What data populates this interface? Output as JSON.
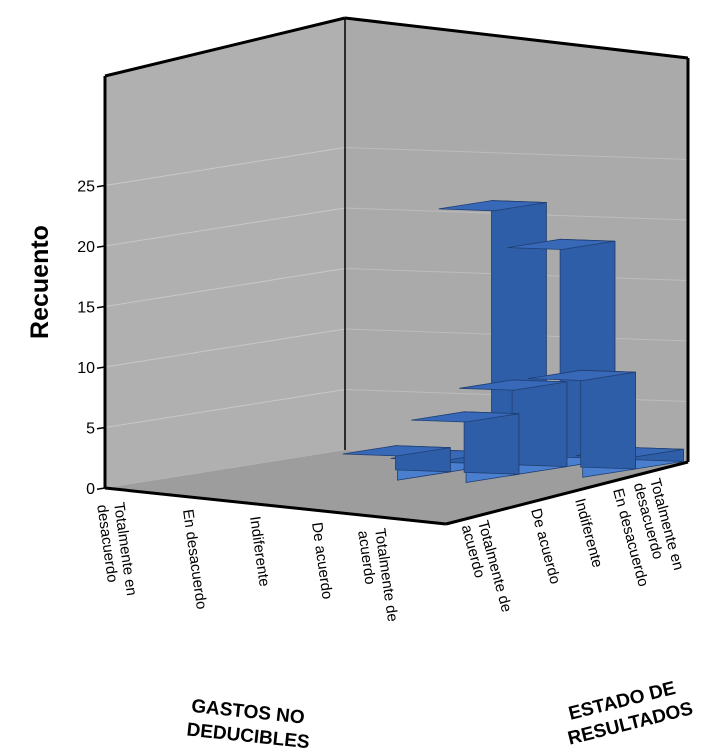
{
  "chart_data": {
    "type": "bar",
    "subtype": "3d-clustered",
    "title": "",
    "ylabel": "Recuento",
    "ylim": [
      0,
      27
    ],
    "yticks": [
      0,
      5,
      10,
      15,
      20,
      25
    ],
    "x_axis": {
      "label": "GASTOS NO DEDUCIBLES",
      "categories": [
        "Totalmente en desacuerdo",
        "En desacuerdo",
        "Indiferente",
        "De acuerdo",
        "Totalmente de acuerdo"
      ]
    },
    "z_axis": {
      "label": "ESTADO DE RESULTADOS",
      "categories": [
        "Totalmente de acuerdo",
        "De acuerdo",
        "Indiferente",
        "En desacuerdo",
        "Totalmente en desacuerdo"
      ]
    },
    "grid": true,
    "colors": {
      "bar_front": "#4a7fcf",
      "bar_side": "#2f5ea8",
      "bar_top": "#3868b8",
      "wall": "#b0b0b0",
      "floor": "#9d9d9d"
    },
    "bars": [
      {
        "gastos": "Indiferente",
        "estado": "De acuerdo",
        "value": 5
      },
      {
        "gastos": "De acuerdo",
        "estado": "Totalmente de acuerdo",
        "value": 8
      },
      {
        "gastos": "Totalmente de acuerdo",
        "estado": "Totalmente de acuerdo",
        "value": 1
      },
      {
        "gastos": "De acuerdo",
        "estado": "Indiferente",
        "value": 1
      },
      {
        "gastos": "Indiferente",
        "estado": "Indiferente",
        "value": 2
      },
      {
        "gastos": "De acuerdo",
        "estado": "De acuerdo",
        "value": 7
      },
      {
        "gastos": "Totalmente de acuerdo",
        "estado": "De acuerdo",
        "value": 18
      },
      {
        "gastos": "Totalmente de acuerdo",
        "estado": "Indiferente",
        "value": 21
      }
    ]
  }
}
